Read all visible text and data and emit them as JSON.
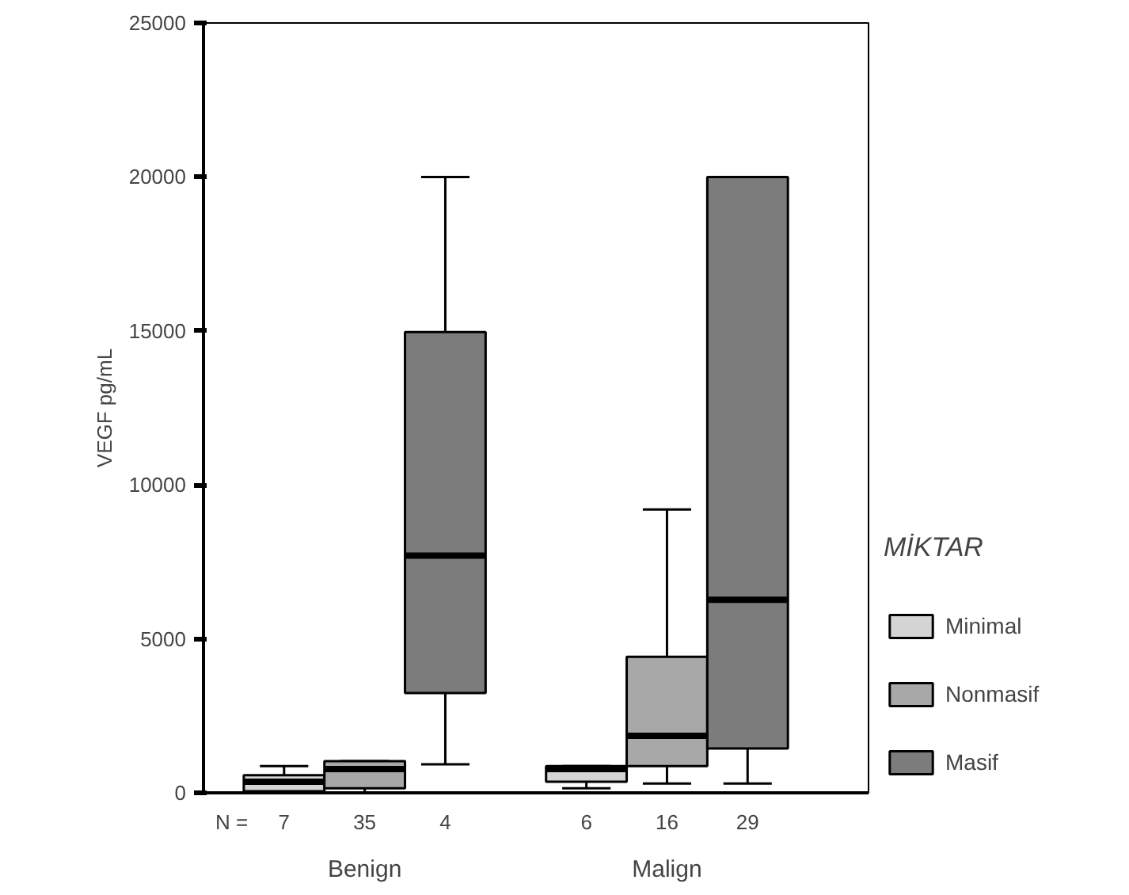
{
  "chart_data": {
    "type": "box",
    "categories": [
      "Benign",
      "Malign"
    ],
    "ylabel": "VEGF pg/mL",
    "legend_title": "MİKTAR",
    "legend": "right",
    "grid": false,
    "ylim": [
      0,
      25000
    ],
    "yticks": [
      0,
      5000,
      10000,
      15000,
      20000,
      25000
    ],
    "annotations": [
      "N =",
      "7",
      "35",
      "4",
      "6",
      "16",
      "29"
    ],
    "series": [
      {
        "name": "Minimal",
        "color": "#d4d4d4",
        "boxes": [
          {
            "low": 0,
            "q1": 50,
            "median": 360,
            "q3": 570,
            "high": 870
          },
          {
            "low": 150,
            "q1": 360,
            "median": 770,
            "q3": 870,
            "high": 870
          }
        ]
      },
      {
        "name": "Nonmasif",
        "color": "#a8a8a8",
        "boxes": [
          {
            "low": 0,
            "q1": 150,
            "median": 770,
            "q3": 1030,
            "high": 1030
          },
          {
            "low": 300,
            "q1": 870,
            "median": 1850,
            "q3": 4420,
            "high": 9200
          }
        ]
      },
      {
        "name": "Masif",
        "color": "#7c7c7c",
        "boxes": [
          {
            "low": 925,
            "q1": 3240,
            "median": 7700,
            "q3": 14960,
            "high": 20000
          },
          {
            "low": 300,
            "q1": 1440,
            "median": 6270,
            "q3": 20000,
            "high": 20000
          }
        ]
      }
    ]
  }
}
